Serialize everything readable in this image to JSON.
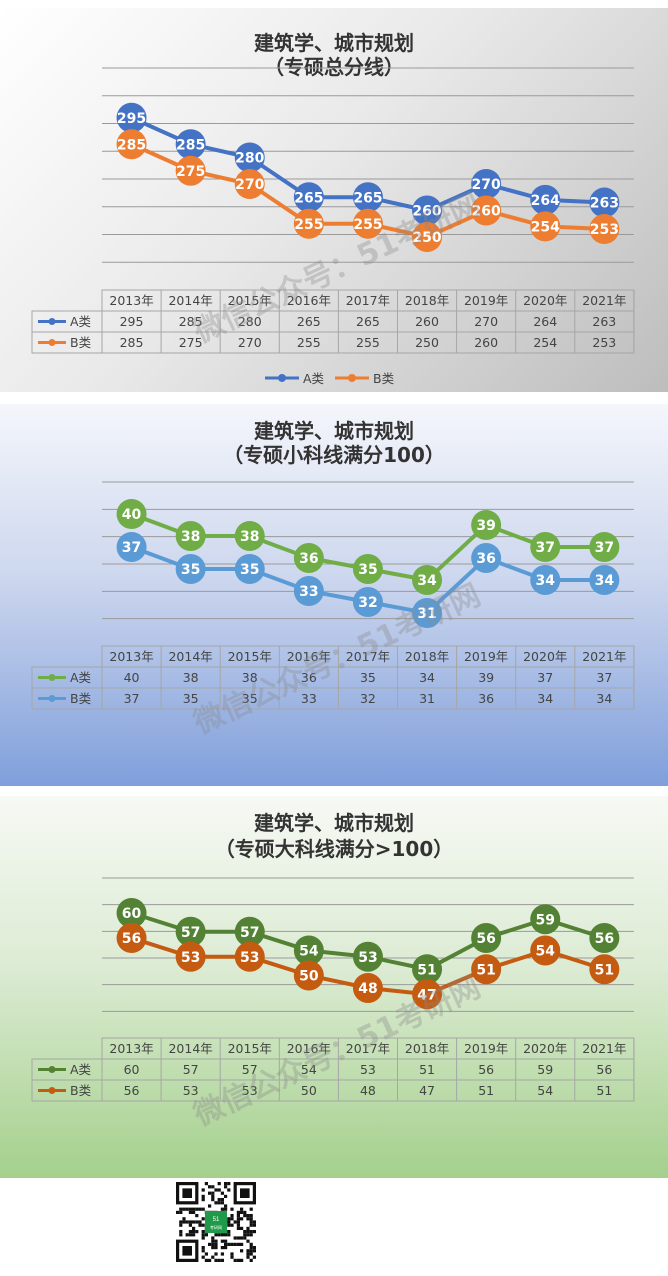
{
  "chart_data": [
    {
      "type": "line",
      "title": "建筑学、城市规划",
      "subtitle": "（专硕总分线）",
      "categories": [
        "2013年",
        "2014年",
        "2015年",
        "2016年",
        "2017年",
        "2018年",
        "2019年",
        "2020年",
        "2021年"
      ],
      "series": [
        {
          "name": "A类",
          "values": [
            295,
            285,
            280,
            265,
            265,
            260,
            270,
            264,
            263
          ],
          "color": "#4472C4"
        },
        {
          "name": "B类",
          "values": [
            285,
            275,
            270,
            255,
            255,
            250,
            260,
            254,
            253
          ],
          "color": "#ED7D31"
        }
      ],
      "grid": true,
      "legend": "bottom",
      "data_table": true
    },
    {
      "type": "line",
      "title": "建筑学、城市规划",
      "subtitle": "（专硕小科线满分100）",
      "categories": [
        "2013年",
        "2014年",
        "2015年",
        "2016年",
        "2017年",
        "2018年",
        "2019年",
        "2020年",
        "2021年"
      ],
      "series": [
        {
          "name": "A类",
          "values": [
            40,
            38,
            38,
            36,
            35,
            34,
            39,
            37,
            37
          ],
          "color": "#70AD47"
        },
        {
          "name": "B类",
          "values": [
            37,
            35,
            35,
            33,
            32,
            31,
            36,
            34,
            34
          ],
          "color": "#5B9BD5"
        }
      ],
      "grid": true,
      "data_table": true
    },
    {
      "type": "line",
      "title": "建筑学、城市规划",
      "subtitle": "（专硕大科线满分>100）",
      "categories": [
        "2013年",
        "2014年",
        "2015年",
        "2016年",
        "2017年",
        "2018年",
        "2019年",
        "2020年",
        "2021年"
      ],
      "series": [
        {
          "name": "A类",
          "values": [
            60,
            57,
            57,
            54,
            53,
            51,
            56,
            59,
            56
          ],
          "color": "#548235"
        },
        {
          "name": "B类",
          "values": [
            56,
            53,
            53,
            50,
            48,
            47,
            51,
            54,
            51
          ],
          "color": "#C55A11"
        }
      ],
      "grid": true,
      "data_table": true
    }
  ],
  "watermark": {
    "text": "微信公众号：51考研网"
  },
  "qr": {
    "logo_text": "51\n考研网"
  }
}
